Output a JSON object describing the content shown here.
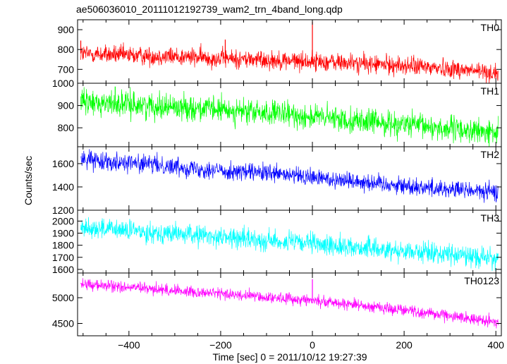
{
  "chart_data": {
    "type": "line",
    "title": "ae506036010_20111012192739_wam2_trn_4band_long.qdp",
    "xlabel": "Time [sec] 0 = 2011/10/12 19:27:39",
    "ylabel": "Counts/sec",
    "xlim": [
      -512,
      412
    ],
    "x_ticks": [
      -400,
      -200,
      0,
      200,
      400
    ],
    "grid": false,
    "panels": [
      {
        "name": "TH0",
        "color": "#ff0000",
        "ylim": [
          630,
          950
        ],
        "y_ticks": [
          700,
          800,
          900
        ],
        "trend_x": [
          -505,
          -400,
          -300,
          -200,
          -100,
          0,
          100,
          200,
          300,
          405
        ],
        "trend_y": [
          780,
          770,
          765,
          755,
          748,
          740,
          730,
          718,
          705,
          680
        ],
        "noise": 34,
        "spikes": [
          [
            0,
            940
          ],
          [
            -190,
            850
          ],
          [
            -505,
            845
          ]
        ]
      },
      {
        "name": "TH1",
        "color": "#00ff00",
        "ylim": [
          715,
          1000
        ],
        "y_ticks": [
          800,
          900,
          1000
        ],
        "trend_x": [
          -505,
          -400,
          -300,
          -200,
          -100,
          0,
          100,
          200,
          300,
          405
        ],
        "trend_y": [
          915,
          905,
          895,
          880,
          865,
          850,
          832,
          815,
          795,
          775
        ],
        "noise": 40,
        "spikes": [
          [
            -430,
            985
          ]
        ]
      },
      {
        "name": "TH2",
        "color": "#0000ff",
        "ylim": [
          1200,
          1745
        ],
        "y_ticks": [
          1200,
          1400,
          1600
        ],
        "trend_x": [
          -505,
          -400,
          -300,
          -200,
          -100,
          0,
          100,
          200,
          300,
          405
        ],
        "trend_y": [
          1640,
          1610,
          1575,
          1540,
          1515,
          1480,
          1450,
          1410,
          1380,
          1350
        ],
        "noise": 55,
        "spikes": []
      },
      {
        "name": "TH3",
        "color": "#00ffff",
        "ylim": [
          1570,
          2090
        ],
        "y_ticks": [
          1600,
          1700,
          1800,
          1900,
          2000
        ],
        "trend_x": [
          -505,
          -400,
          -300,
          -200,
          -100,
          0,
          100,
          200,
          300,
          405
        ],
        "trend_y": [
          1950,
          1920,
          1895,
          1870,
          1840,
          1810,
          1780,
          1755,
          1725,
          1690
        ],
        "noise": 60,
        "spikes": []
      },
      {
        "name": "TH0123",
        "color": "#ff00ff",
        "ylim": [
          4260,
          5480
        ],
        "y_ticks": [
          4500,
          5000
        ],
        "trend_x": [
          -505,
          -400,
          -300,
          -200,
          -100,
          0,
          100,
          200,
          300,
          405
        ],
        "trend_y": [
          5260,
          5200,
          5140,
          5080,
          5010,
          4950,
          4860,
          4760,
          4650,
          4520
        ],
        "noise": 80,
        "spikes": [
          [
            0,
            5360
          ]
        ]
      }
    ]
  }
}
